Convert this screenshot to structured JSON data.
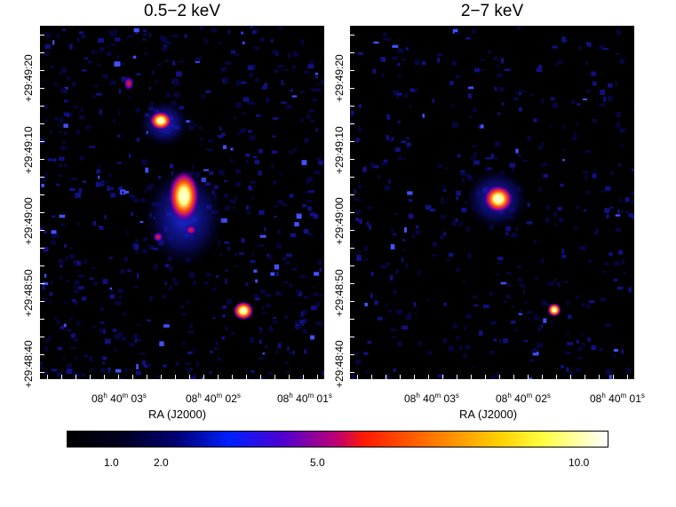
{
  "panels": [
    {
      "title": "0.5−2 keV"
    },
    {
      "title": "2−7 keV"
    }
  ],
  "dec_ticks": [
    "+29:49:20",
    "+29:49:10",
    "+29:49:00",
    "+29:48:50",
    "+29:48:40"
  ],
  "ra_ticks": [
    {
      "h": "08",
      "hs": "h",
      "m": "40",
      "ms": "m",
      "s": "03",
      "ss": "s"
    },
    {
      "h": "08",
      "hs": "h",
      "m": "40",
      "ms": "m",
      "s": "02",
      "ss": "s"
    },
    {
      "h": "08",
      "hs": "h",
      "m": "40",
      "ms": "m",
      "s": "01",
      "ss": "s"
    }
  ],
  "x_axis_title": "RA (J2000)",
  "colorbar": {
    "labels": [
      "1.0",
      "2.0",
      "5.0",
      "10.0"
    ]
  },
  "colormap": "black-blue-red-yellow-white"
}
